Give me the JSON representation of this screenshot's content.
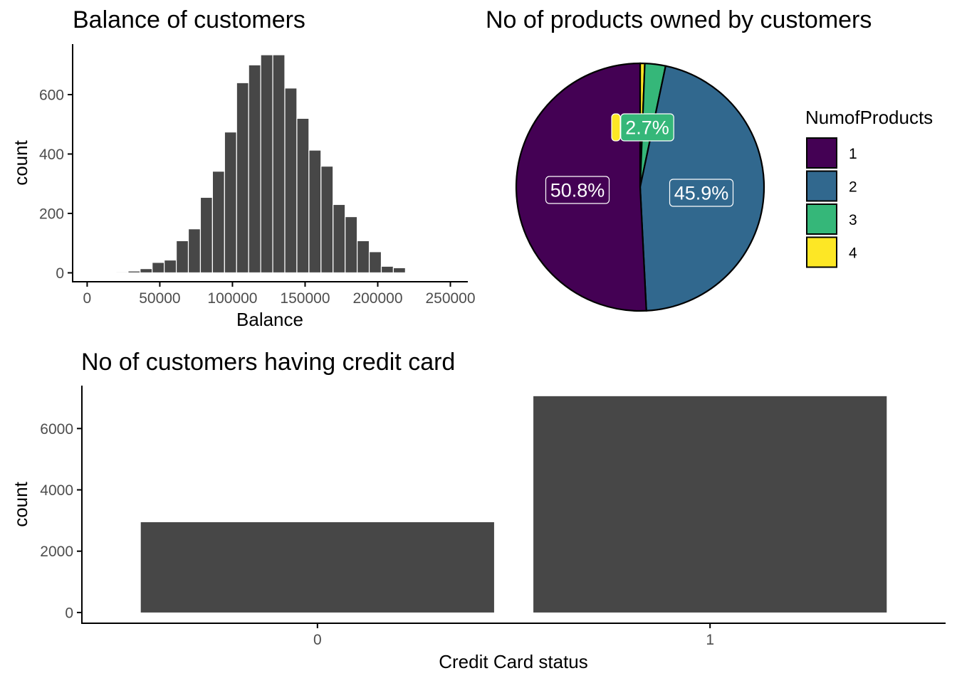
{
  "colors": {
    "bar_fill": "#474747",
    "axis": "#000000",
    "tick_text": "#4d4d4d",
    "pie_slice_outline": "#000000",
    "label_outline": "#ffffff"
  },
  "chart_data": [
    {
      "type": "bar",
      "subtype": "histogram",
      "title": "Balance of customers",
      "xlabel": "Balance",
      "ylabel": "count",
      "xlim": [
        -10000,
        262000
      ],
      "ylim": [
        -30,
        770
      ],
      "x_ticks": [
        0,
        50000,
        100000,
        150000,
        200000,
        250000
      ],
      "y_ticks": [
        0,
        200,
        400,
        600
      ],
      "bin_width": 8300,
      "bin_centers": [
        24000,
        32300,
        40600,
        48900,
        57200,
        65500,
        73800,
        82100,
        90400,
        98700,
        107000,
        115300,
        123600,
        131900,
        140200,
        148500,
        156800,
        165100,
        173400,
        181700,
        190000,
        198300,
        206600,
        214900
      ],
      "values": [
        3,
        6,
        14,
        35,
        43,
        108,
        148,
        254,
        342,
        474,
        640,
        700,
        734,
        734,
        622,
        520,
        413,
        359,
        230,
        189,
        108,
        71,
        22,
        17
      ],
      "grid": false
    },
    {
      "type": "pie",
      "title": "No of products owned by customers",
      "legend_title": "NumofProducts",
      "legend_position": "right",
      "slices": [
        {
          "label": "1",
          "value": 50.8,
          "display": "50.8%",
          "color": "#440154"
        },
        {
          "label": "2",
          "value": 45.9,
          "display": "45.9%",
          "color": "#31688E"
        },
        {
          "label": "3",
          "value": 2.7,
          "display": "2.7%",
          "color": "#35B779"
        },
        {
          "label": "4",
          "value": 0.6,
          "display": "",
          "color": "#FDE725"
        }
      ]
    },
    {
      "type": "bar",
      "title": "No of customers having credit card",
      "xlabel": "Credit Card status",
      "ylabel": "count",
      "categories": [
        "0",
        "1"
      ],
      "values": [
        2945,
        7055
      ],
      "ylim": [
        -350,
        7400
      ],
      "y_ticks": [
        0,
        2000,
        4000,
        6000
      ],
      "grid": false
    }
  ]
}
